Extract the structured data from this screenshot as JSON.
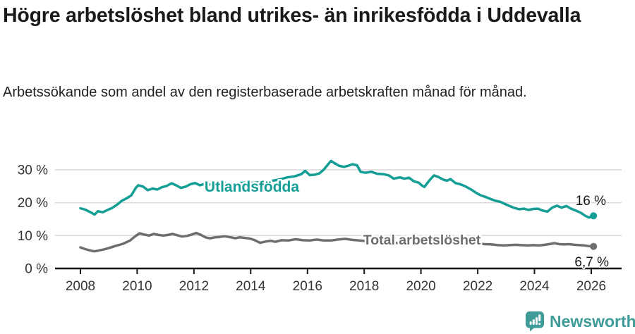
{
  "chart_data": {
    "type": "line",
    "title": "Högre arbetslöshet bland utrikes- än inrikesfödda i Uddevalla",
    "subtitle": "Arbetssökande som andel av den registerbaserade arbetskraften månad för månad.",
    "legend_position": "inline-labels-on-lines",
    "grid": "horizontal-only",
    "x_axis": {
      "ticks": [
        2008,
        2010,
        2012,
        2014,
        2016,
        2018,
        2020,
        2022,
        2024,
        2026
      ],
      "range": [
        2007.9,
        2027.0
      ]
    },
    "y_axis": {
      "ticks": [
        0,
        10,
        20,
        30
      ],
      "tick_labels": [
        "0 %",
        "10 %",
        "20 %",
        "30 %"
      ],
      "range": [
        0,
        33.5
      ],
      "unit": "%"
    },
    "series": [
      {
        "name": "Utlandsfödda",
        "color": "#149e95",
        "end_label": "16 %",
        "last_value": 16,
        "points": [
          [
            2008.0,
            18.3
          ],
          [
            2008.17,
            17.9
          ],
          [
            2008.33,
            17.2
          ],
          [
            2008.5,
            16.4
          ],
          [
            2008.62,
            17.4
          ],
          [
            2008.79,
            17.1
          ],
          [
            2008.96,
            17.8
          ],
          [
            2009.12,
            18.4
          ],
          [
            2009.29,
            19.4
          ],
          [
            2009.46,
            20.6
          ],
          [
            2009.62,
            21.3
          ],
          [
            2009.79,
            22.2
          ],
          [
            2009.96,
            24.6
          ],
          [
            2010.04,
            25.3
          ],
          [
            2010.21,
            24.9
          ],
          [
            2010.37,
            23.8
          ],
          [
            2010.54,
            24.3
          ],
          [
            2010.71,
            24.0
          ],
          [
            2010.87,
            24.7
          ],
          [
            2011.04,
            25.1
          ],
          [
            2011.21,
            25.9
          ],
          [
            2011.37,
            25.3
          ],
          [
            2011.54,
            24.5
          ],
          [
            2011.71,
            24.9
          ],
          [
            2011.87,
            25.6
          ],
          [
            2012.04,
            26.0
          ],
          [
            2012.21,
            25.3
          ],
          [
            2012.37,
            25.7
          ],
          [
            2012.54,
            25.5
          ],
          [
            2012.79,
            25.8
          ],
          [
            2013.04,
            26.0
          ],
          [
            2013.29,
            25.7
          ],
          [
            2013.54,
            25.9
          ],
          [
            2013.79,
            26.1
          ],
          [
            2014.04,
            26.0
          ],
          [
            2014.29,
            26.2
          ],
          [
            2014.54,
            26.4
          ],
          [
            2014.79,
            26.7
          ],
          [
            2015.04,
            27.1
          ],
          [
            2015.29,
            27.7
          ],
          [
            2015.54,
            28.0
          ],
          [
            2015.79,
            28.7
          ],
          [
            2015.92,
            29.7
          ],
          [
            2016.08,
            28.4
          ],
          [
            2016.25,
            28.5
          ],
          [
            2016.42,
            28.9
          ],
          [
            2016.58,
            30.1
          ],
          [
            2016.75,
            31.9
          ],
          [
            2016.83,
            32.7
          ],
          [
            2016.96,
            32.0
          ],
          [
            2017.12,
            31.2
          ],
          [
            2017.29,
            30.9
          ],
          [
            2017.46,
            31.3
          ],
          [
            2017.58,
            31.7
          ],
          [
            2017.75,
            31.4
          ],
          [
            2017.87,
            29.4
          ],
          [
            2018.04,
            29.1
          ],
          [
            2018.25,
            29.4
          ],
          [
            2018.46,
            28.8
          ],
          [
            2018.67,
            28.7
          ],
          [
            2018.87,
            28.3
          ],
          [
            2019.04,
            27.3
          ],
          [
            2019.25,
            27.7
          ],
          [
            2019.42,
            27.3
          ],
          [
            2019.58,
            27.6
          ],
          [
            2019.75,
            26.5
          ],
          [
            2019.92,
            26.1
          ],
          [
            2020.04,
            25.2
          ],
          [
            2020.12,
            24.8
          ],
          [
            2020.29,
            26.7
          ],
          [
            2020.46,
            28.3
          ],
          [
            2020.62,
            27.8
          ],
          [
            2020.79,
            27.0
          ],
          [
            2020.92,
            26.7
          ],
          [
            2021.04,
            27.2
          ],
          [
            2021.21,
            26.0
          ],
          [
            2021.42,
            25.5
          ],
          [
            2021.58,
            24.9
          ],
          [
            2021.79,
            23.9
          ],
          [
            2021.96,
            22.9
          ],
          [
            2022.12,
            22.2
          ],
          [
            2022.29,
            21.7
          ],
          [
            2022.46,
            21.1
          ],
          [
            2022.62,
            20.6
          ],
          [
            2022.79,
            20.3
          ],
          [
            2022.96,
            19.6
          ],
          [
            2023.12,
            19.0
          ],
          [
            2023.29,
            18.4
          ],
          [
            2023.46,
            18.0
          ],
          [
            2023.62,
            18.2
          ],
          [
            2023.79,
            17.8
          ],
          [
            2023.96,
            18.1
          ],
          [
            2024.12,
            18.2
          ],
          [
            2024.29,
            17.6
          ],
          [
            2024.46,
            17.3
          ],
          [
            2024.62,
            18.5
          ],
          [
            2024.79,
            19.1
          ],
          [
            2024.96,
            18.5
          ],
          [
            2025.12,
            19.0
          ],
          [
            2025.29,
            18.2
          ],
          [
            2025.46,
            17.6
          ],
          [
            2025.62,
            17.0
          ],
          [
            2025.79,
            16.0
          ],
          [
            2025.92,
            15.5
          ],
          [
            2026.08,
            16.0
          ]
        ]
      },
      {
        "name": "Total arbetslöshet",
        "color": "#6e6e6e",
        "end_label": "6,7 %",
        "last_value": 6.7,
        "points": [
          [
            2008.0,
            6.4
          ],
          [
            2008.17,
            5.9
          ],
          [
            2008.33,
            5.5
          ],
          [
            2008.5,
            5.2
          ],
          [
            2008.67,
            5.5
          ],
          [
            2008.83,
            5.8
          ],
          [
            2009.0,
            6.2
          ],
          [
            2009.25,
            6.9
          ],
          [
            2009.5,
            7.5
          ],
          [
            2009.75,
            8.5
          ],
          [
            2009.92,
            9.7
          ],
          [
            2010.08,
            10.7
          ],
          [
            2010.25,
            10.3
          ],
          [
            2010.42,
            10.0
          ],
          [
            2010.58,
            10.5
          ],
          [
            2010.75,
            10.2
          ],
          [
            2010.92,
            10.0
          ],
          [
            2011.08,
            10.2
          ],
          [
            2011.25,
            10.5
          ],
          [
            2011.42,
            10.1
          ],
          [
            2011.58,
            9.7
          ],
          [
            2011.75,
            9.9
          ],
          [
            2011.92,
            10.3
          ],
          [
            2012.08,
            10.8
          ],
          [
            2012.25,
            10.2
          ],
          [
            2012.42,
            9.4
          ],
          [
            2012.58,
            9.2
          ],
          [
            2012.75,
            9.5
          ],
          [
            2012.92,
            9.6
          ],
          [
            2013.08,
            9.8
          ],
          [
            2013.29,
            9.5
          ],
          [
            2013.46,
            9.2
          ],
          [
            2013.62,
            9.5
          ],
          [
            2013.79,
            9.3
          ],
          [
            2013.96,
            9.1
          ],
          [
            2014.12,
            8.7
          ],
          [
            2014.33,
            7.8
          ],
          [
            2014.54,
            8.2
          ],
          [
            2014.71,
            8.4
          ],
          [
            2014.87,
            8.1
          ],
          [
            2015.08,
            8.6
          ],
          [
            2015.33,
            8.5
          ],
          [
            2015.58,
            8.9
          ],
          [
            2015.83,
            8.6
          ],
          [
            2016.08,
            8.5
          ],
          [
            2016.33,
            8.8
          ],
          [
            2016.58,
            8.5
          ],
          [
            2016.83,
            8.5
          ],
          [
            2017.08,
            8.8
          ],
          [
            2017.33,
            9.0
          ],
          [
            2017.58,
            8.7
          ],
          [
            2017.83,
            8.5
          ],
          [
            2018.08,
            8.3
          ],
          [
            2018.33,
            8.2
          ],
          [
            2018.58,
            8.0
          ],
          [
            2018.83,
            7.9
          ],
          [
            2019.08,
            7.8
          ],
          [
            2019.33,
            7.7
          ],
          [
            2019.58,
            7.7
          ],
          [
            2019.83,
            7.8
          ],
          [
            2020.08,
            8.1
          ],
          [
            2020.33,
            8.9
          ],
          [
            2020.5,
            9.2
          ],
          [
            2020.75,
            9.0
          ],
          [
            2021.0,
            8.7
          ],
          [
            2021.25,
            8.4
          ],
          [
            2021.5,
            8.1
          ],
          [
            2021.75,
            7.8
          ],
          [
            2022.0,
            7.6
          ],
          [
            2022.25,
            7.4
          ],
          [
            2022.5,
            7.3
          ],
          [
            2022.71,
            7.1
          ],
          [
            2022.92,
            7.0
          ],
          [
            2023.12,
            7.1
          ],
          [
            2023.33,
            7.2
          ],
          [
            2023.54,
            7.1
          ],
          [
            2023.75,
            7.0
          ],
          [
            2023.96,
            7.1
          ],
          [
            2024.17,
            7.0
          ],
          [
            2024.37,
            7.2
          ],
          [
            2024.58,
            7.5
          ],
          [
            2024.71,
            7.7
          ],
          [
            2024.87,
            7.4
          ],
          [
            2025.04,
            7.3
          ],
          [
            2025.21,
            7.4
          ],
          [
            2025.42,
            7.2
          ],
          [
            2025.58,
            7.1
          ],
          [
            2025.75,
            7.0
          ],
          [
            2025.92,
            6.8
          ],
          [
            2026.08,
            6.7
          ]
        ]
      }
    ],
    "style": {
      "grid_color": "#d9d9d9",
      "axis_color": "#161616",
      "tick_label_color": "#333333"
    }
  },
  "footer": {
    "brand": "Newsworthy",
    "brand_color": "#3f9b98",
    "logo_icon": "bar-chart-speech-bubble-icon"
  }
}
